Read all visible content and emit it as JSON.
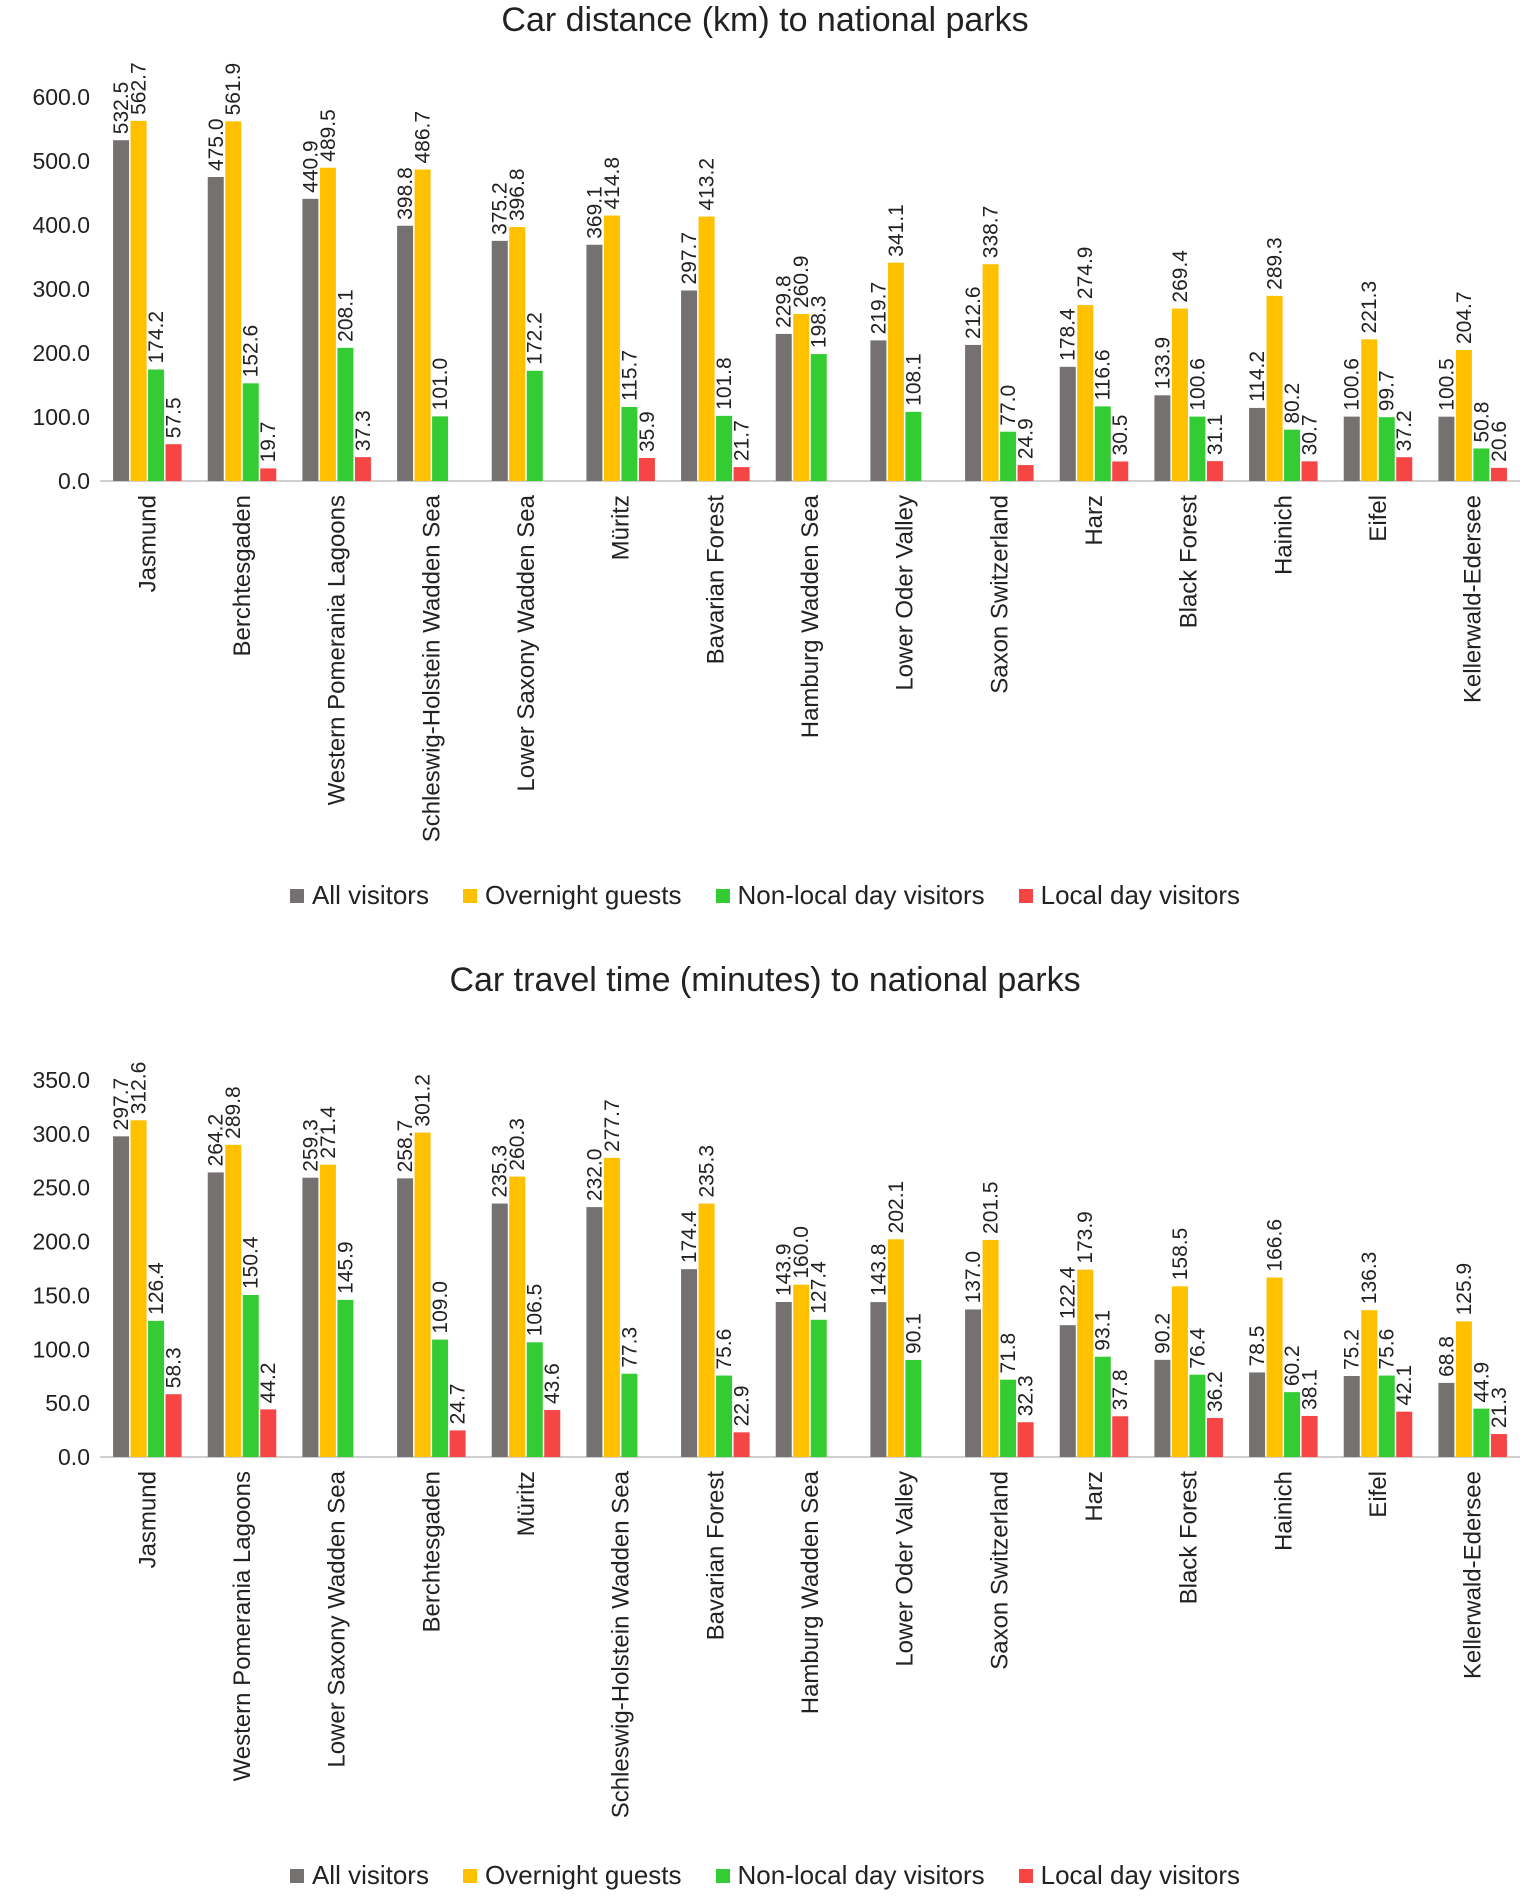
{
  "chart_data": [
    {
      "type": "bar",
      "title": "Car distance (km) to national parks",
      "xlabel": "",
      "ylabel": "",
      "ylim": [
        0,
        600
      ],
      "yticks": [
        "0.0",
        "100.0",
        "200.0",
        "300.0",
        "400.0",
        "500.0",
        "600.0"
      ],
      "legend_position": "bottom",
      "grid": false,
      "categories": [
        "Jasmund",
        "Berchtesgaden",
        "Western Pomerania Lagoons",
        "Schleswig-Holstein Wadden Sea",
        "Lower Saxony Wadden Sea",
        "Müritz",
        "Bavarian Forest",
        "Hamburg Wadden Sea",
        "Lower Oder Valley",
        "Saxon Switzerland",
        "Harz",
        "Black Forest",
        "Hainich",
        "Eifel",
        "Kellerwald-Edersee"
      ],
      "series": [
        {
          "name": "All visitors",
          "color": "#767171",
          "values": [
            532.5,
            475.0,
            440.9,
            398.8,
            375.2,
            369.1,
            297.7,
            229.8,
            219.7,
            212.6,
            178.4,
            133.9,
            114.2,
            100.6,
            100.5
          ],
          "labels": [
            "532.5",
            "475.0",
            "440.9",
            "398.8",
            "375.2",
            "369.1",
            "297.7",
            "229.8",
            "219.7",
            "212.6",
            "178.4",
            "133.9",
            "114.2",
            "100.6",
            "100.5"
          ]
        },
        {
          "name": "Overnight guests",
          "color": "#FFC000",
          "values": [
            562.7,
            561.9,
            489.5,
            486.7,
            396.8,
            414.8,
            413.2,
            260.9,
            341.1,
            338.7,
            274.9,
            269.4,
            289.3,
            221.3,
            204.7
          ],
          "labels": [
            "562.7",
            "561.9",
            "489.5",
            "486.7",
            "396.8",
            "414.8",
            "413.2",
            "260.9",
            "341.1",
            "338.7",
            "274.9",
            "269.4",
            "289.3",
            "221.3",
            "204.7"
          ]
        },
        {
          "name": "Non-local day visitors",
          "color": "#33CC33",
          "values": [
            174.2,
            152.6,
            208.1,
            101.0,
            172.2,
            115.7,
            101.8,
            198.3,
            108.1,
            77.0,
            116.6,
            100.6,
            80.2,
            99.7,
            50.8
          ],
          "labels": [
            "174.2",
            "152.6",
            "208.1",
            "101.0",
            "172.2",
            "115.7",
            "101.8",
            "198.3",
            "108.1",
            "77.0",
            "116.6",
            "100.6",
            "80.2",
            "99.7",
            "50.8"
          ]
        },
        {
          "name": "Local day visitors",
          "color": "#F54545",
          "values": [
            57.5,
            19.7,
            37.3,
            null,
            null,
            35.9,
            21.7,
            null,
            null,
            24.9,
            30.5,
            31.1,
            30.7,
            37.2,
            20.6
          ],
          "labels": [
            "57.5",
            "19.7",
            "37.3",
            "",
            "",
            "35.9",
            "21.7",
            "",
            "",
            "24.9",
            "30.5",
            "31.1",
            "30.7",
            "37.2",
            "20.6"
          ]
        }
      ]
    },
    {
      "type": "bar",
      "title": "Car travel time (minutes) to national parks",
      "xlabel": "",
      "ylabel": "",
      "ylim": [
        0,
        350
      ],
      "yticks": [
        "0.0",
        "50.0",
        "100.0",
        "150.0",
        "200.0",
        "250.0",
        "300.0",
        "350.0"
      ],
      "legend_position": "bottom",
      "grid": false,
      "categories": [
        "Jasmund",
        "Western Pomerania Lagoons",
        "Lower Saxony Wadden Sea",
        "Berchtesgaden",
        "Müritz",
        "Schleswig-Holstein Wadden Sea",
        "Bavarian Forest",
        "Hamburg Wadden Sea",
        "Lower Oder Valley",
        "Saxon Switzerland",
        "Harz",
        "Black Forest",
        "Hainich",
        "Eifel",
        "Kellerwald-Edersee"
      ],
      "series": [
        {
          "name": "All visitors",
          "color": "#767171",
          "values": [
            297.7,
            264.2,
            259.3,
            258.7,
            235.3,
            232.0,
            174.4,
            143.9,
            143.8,
            137.0,
            122.4,
            90.2,
            78.5,
            75.2,
            68.8
          ],
          "labels": [
            "297.7",
            "264.2",
            "259.3",
            "258.7",
            "235.3",
            "232.0",
            "174.4",
            "143.9",
            "143.8",
            "137.0",
            "122.4",
            "90.2",
            "78.5",
            "75.2",
            "68.8"
          ]
        },
        {
          "name": "Overnight guests",
          "color": "#FFC000",
          "values": [
            312.6,
            289.8,
            271.4,
            301.2,
            260.3,
            277.7,
            235.3,
            160.0,
            202.1,
            201.5,
            173.9,
            158.5,
            166.6,
            136.3,
            125.9
          ],
          "labels": [
            "312.6",
            "289.8",
            "271.4",
            "301.2",
            "260.3",
            "277.7",
            "235.3",
            "160.0",
            "202.1",
            "201.5",
            "173.9",
            "158.5",
            "166.6",
            "136.3",
            "125.9"
          ]
        },
        {
          "name": "Non-local day visitors",
          "color": "#33CC33",
          "values": [
            126.4,
            150.4,
            145.9,
            109.0,
            106.5,
            77.3,
            75.6,
            127.4,
            90.1,
            71.8,
            93.1,
            76.4,
            60.2,
            75.6,
            44.9
          ],
          "labels": [
            "126.4",
            "150.4",
            "145.9",
            "109.0",
            "106.5",
            "77.3",
            "75.6",
            "127.4",
            "90.1",
            "71.8",
            "93.1",
            "76.4",
            "60.2",
            "75.6",
            "44.9"
          ]
        },
        {
          "name": "Local day visitors",
          "color": "#F54545",
          "values": [
            58.3,
            44.2,
            null,
            24.7,
            43.6,
            null,
            22.9,
            null,
            null,
            32.3,
            37.8,
            36.2,
            38.1,
            42.1,
            21.3
          ],
          "labels": [
            "58.3",
            "44.2",
            "",
            "24.7",
            "43.6",
            "",
            "22.9",
            "",
            "",
            "32.3",
            "37.8",
            "36.2",
            "38.1",
            "42.1",
            "21.3"
          ]
        }
      ]
    }
  ]
}
